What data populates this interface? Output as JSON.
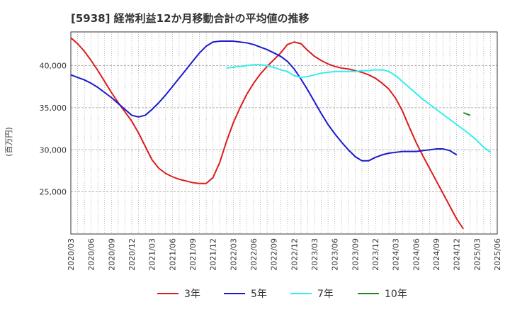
{
  "chart_data": {
    "type": "line",
    "title": "[5938]  経常利益12か月移動合計の平均値の推移",
    "ylabel": "(百万円)",
    "xlabel": "",
    "ylim": [
      20000,
      44000
    ],
    "y_ticks": [
      25000,
      30000,
      35000,
      40000
    ],
    "y_tick_labels": [
      "25,000",
      "30,000",
      "35,000",
      "40,000"
    ],
    "x_start": "2020/03",
    "x_end": "2025/06",
    "x_tick_labels": [
      "2020/03",
      "2020/06",
      "2020/09",
      "2020/12",
      "2021/03",
      "2021/06",
      "2021/09",
      "2021/12",
      "2022/03",
      "2022/06",
      "2022/09",
      "2022/12",
      "2023/03",
      "2023/06",
      "2023/09",
      "2023/12",
      "2024/03",
      "2024/06",
      "2024/09",
      "2024/12",
      "2025/03",
      "2025/06"
    ],
    "grid": true,
    "legend_position": "bottom",
    "series": [
      {
        "name": "3年",
        "color": "#dd1c1c",
        "start": "2020/03",
        "values": [
          43300,
          42600,
          41700,
          40600,
          39400,
          38100,
          36800,
          35600,
          34500,
          33400,
          32000,
          30400,
          28800,
          27800,
          27200,
          26800,
          26500,
          26300,
          26100,
          26000,
          26000,
          26700,
          28500,
          31000,
          33200,
          35000,
          36600,
          37900,
          39000,
          39900,
          40700,
          41500,
          42500,
          42800,
          42600,
          41800,
          41100,
          40600,
          40200,
          39900,
          39700,
          39600,
          39400,
          39200,
          38900,
          38500,
          37900,
          37200,
          36100,
          34600,
          32700,
          30900,
          29300,
          27800,
          26300,
          24800,
          23300,
          21800,
          20600
        ]
      },
      {
        "name": "5年",
        "color": "#1a1acc",
        "start": "2020/03",
        "values": [
          38900,
          38600,
          38300,
          37900,
          37400,
          36800,
          36200,
          35500,
          34800,
          34100,
          33900,
          34100,
          34800,
          35600,
          36500,
          37500,
          38500,
          39500,
          40500,
          41500,
          42300,
          42800,
          42900,
          42900,
          42900,
          42800,
          42700,
          42500,
          42200,
          41900,
          41500,
          41100,
          40500,
          39600,
          38400,
          37100,
          35700,
          34300,
          33000,
          31900,
          30900,
          30000,
          29200,
          28700,
          28700,
          29100,
          29400,
          29600,
          29700,
          29800,
          29800,
          29800,
          29900,
          30000,
          30100,
          30100,
          29900,
          29400
        ]
      },
      {
        "name": "7年",
        "color": "#33eeee",
        "start": "2022/02",
        "values": [
          39700,
          39800,
          39900,
          40000,
          40100,
          40100,
          40000,
          39800,
          39500,
          39300,
          38800,
          38600,
          38700,
          38900,
          39100,
          39200,
          39300,
          39300,
          39300,
          39300,
          39400,
          39400,
          39500,
          39500,
          39300,
          38800,
          38100,
          37400,
          36700,
          36000,
          35400,
          34800,
          34200,
          33600,
          33000,
          32400,
          31800,
          31100,
          30300,
          29700
        ]
      },
      {
        "name": "10年",
        "color": "#228822",
        "start": "2025/01",
        "values": [
          34400,
          34100
        ]
      }
    ]
  }
}
